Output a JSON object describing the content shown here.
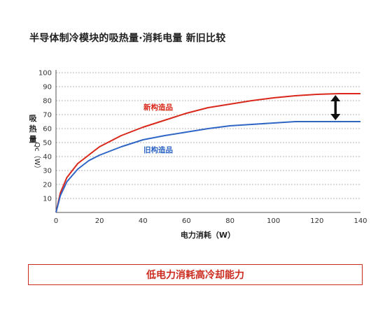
{
  "title": "半导体制冷模块的吸热量·消耗电量 新旧比较",
  "banner_text": "低电力消耗高冷却能力",
  "chart_data": {
    "type": "line",
    "xlabel": "电力消耗（W）",
    "ylabel_chars": [
      "吸",
      "热",
      "量"
    ],
    "ylabel_unit": "Qc（W）",
    "xlim": [
      0,
      140
    ],
    "ylim": [
      0,
      100
    ],
    "x_ticks": [
      0,
      20,
      40,
      60,
      80,
      100,
      120,
      140
    ],
    "y_ticks": [
      10,
      20,
      30,
      40,
      50,
      60,
      70,
      80,
      90,
      100
    ],
    "grid": "horizontal-dotted",
    "series": [
      {
        "name": "新构造品",
        "color": "#d9281b",
        "x": [
          0,
          2,
          5,
          10,
          15,
          20,
          30,
          40,
          50,
          60,
          70,
          80,
          90,
          100,
          110,
          120,
          130,
          140
        ],
        "y": [
          0,
          14,
          25,
          35,
          41,
          47,
          55,
          61,
          66,
          71,
          75,
          77.5,
          80,
          82,
          83.5,
          84.5,
          85,
          85
        ]
      },
      {
        "name": "旧构造品",
        "color": "#2f66c6",
        "x": [
          0,
          2,
          5,
          10,
          15,
          20,
          30,
          40,
          50,
          60,
          70,
          80,
          90,
          100,
          110,
          120,
          130,
          140
        ],
        "y": [
          0,
          12,
          22,
          31,
          37,
          41,
          47,
          52,
          55,
          57.5,
          60,
          62,
          63,
          64,
          65,
          65,
          65,
          65
        ]
      }
    ],
    "annotation": "double-arrow"
  }
}
